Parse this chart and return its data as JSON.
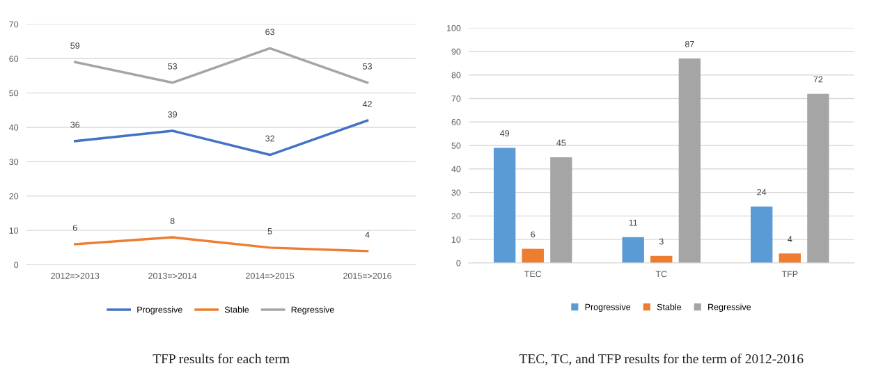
{
  "chart_data": [
    {
      "type": "line",
      "categories": [
        "2012=>2013",
        "2013=>2014",
        "2014=>2015",
        "2015=>2016"
      ],
      "series": [
        {
          "name": "Progressive",
          "color": "#4472c4",
          "values": [
            36,
            39,
            32,
            42
          ]
        },
        {
          "name": "Stable",
          "color": "#ed7d31",
          "values": [
            6,
            8,
            5,
            4
          ]
        },
        {
          "name": "Regressive",
          "color": "#a5a5a5",
          "values": [
            59,
            53,
            63,
            53
          ]
        }
      ],
      "ylim": [
        0,
        70
      ],
      "yticks": [
        0,
        10,
        20,
        30,
        40,
        50,
        60,
        70
      ],
      "grid": "y",
      "legend": "bottom",
      "data_labels": true,
      "marker": "none",
      "line_style": "solid",
      "annotations": [
        "TFP results for each term"
      ]
    },
    {
      "type": "bar",
      "categories": [
        "TEC",
        "TC",
        "TFP"
      ],
      "series": [
        {
          "name": "Progressive",
          "color": "#5b9bd5",
          "values": [
            49,
            11,
            24
          ]
        },
        {
          "name": "Stable",
          "color": "#ed7d31",
          "values": [
            6,
            3,
            4
          ]
        },
        {
          "name": "Regressive",
          "color": "#a5a5a5",
          "values": [
            45,
            87,
            72
          ]
        }
      ],
      "ylim": [
        0,
        100
      ],
      "yticks": [
        0,
        10,
        20,
        30,
        40,
        50,
        60,
        70,
        80,
        90,
        100
      ],
      "grid": "y",
      "legend": "bottom",
      "data_labels": true,
      "annotations": [
        "TEC, TC, and TFP results for the term of 2012-2016"
      ]
    }
  ]
}
